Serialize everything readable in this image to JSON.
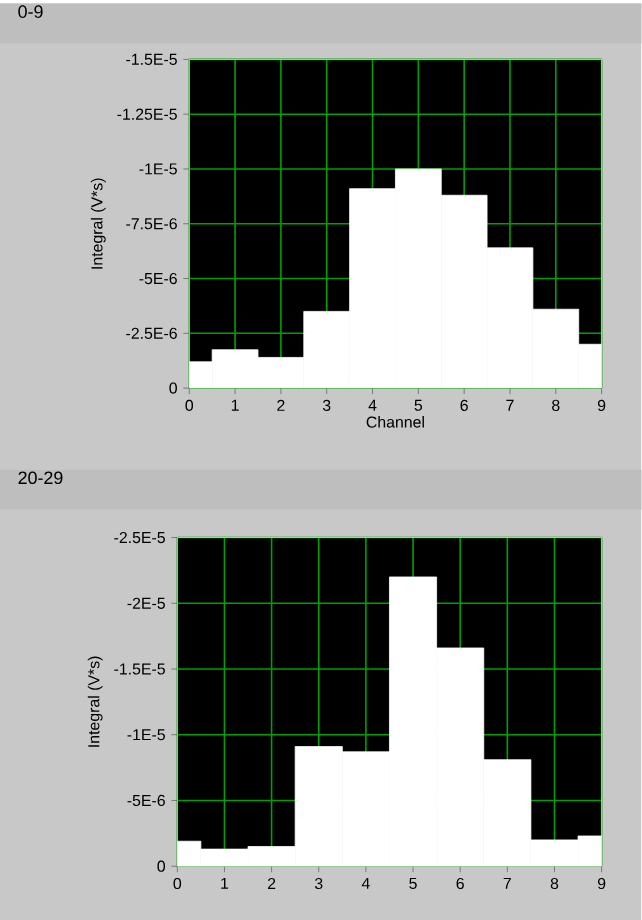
{
  "chart_data": [
    {
      "type": "bar",
      "title": "0-9",
      "xlabel": "Channel",
      "ylabel": "Integral (V*s)",
      "x": [
        0,
        1,
        2,
        3,
        4,
        5,
        6,
        7,
        8,
        9
      ],
      "xlim": [
        0,
        9
      ],
      "xticks": [
        0,
        1,
        2,
        3,
        4,
        5,
        6,
        7,
        8,
        9
      ],
      "ylim": [
        0,
        -1.5e-05
      ],
      "yticks": [
        0,
        {
          "value": -2.5e-06,
          "label": "-2.5E-6"
        },
        {
          "value": -5e-06,
          "label": "-5E-6"
        },
        {
          "value": -7.5e-06,
          "label": "-7.5E-6"
        },
        {
          "value": -1e-05,
          "label": "-1E-5"
        },
        {
          "value": -1.25e-05,
          "label": "-1.25E-5"
        },
        {
          "value": -1.5e-05,
          "label": "-1.5E-5"
        }
      ],
      "color": "#ffffff",
      "grid": true,
      "values": [
        -1.2e-06,
        -1.75e-06,
        -1.4e-06,
        -3.5e-06,
        -9.1e-06,
        -1e-05,
        -8.8e-06,
        -6.4e-06,
        -3.6e-06,
        -2e-06
      ]
    },
    {
      "type": "bar",
      "title": "20-29",
      "ylabel": "Integral (V*s)",
      "x": [
        0,
        1,
        2,
        3,
        4,
        5,
        6,
        7,
        8,
        9
      ],
      "xlim": [
        0,
        9
      ],
      "xticks": [
        0,
        1,
        2,
        3,
        4,
        5,
        6,
        7,
        8,
        9
      ],
      "ylim": [
        0,
        -2.5e-05
      ],
      "yticks": [
        0,
        {
          "value": -5e-06,
          "label": "-5E-6"
        },
        {
          "value": -1e-05,
          "label": "-1E-5"
        },
        {
          "value": -1.5e-05,
          "label": "-1.5E-5"
        },
        {
          "value": -2e-05,
          "label": "-2E-5"
        },
        {
          "value": -2.5e-05,
          "label": "-2.5E-5"
        }
      ],
      "color": "#ffffff",
      "grid": true,
      "values": [
        -1.9e-06,
        -1.3e-06,
        -1.5e-06,
        -9.1e-06,
        -8.7e-06,
        -2.2e-05,
        -1.66e-05,
        -8.1e-06,
        -2e-06,
        -2.3e-06
      ]
    }
  ]
}
